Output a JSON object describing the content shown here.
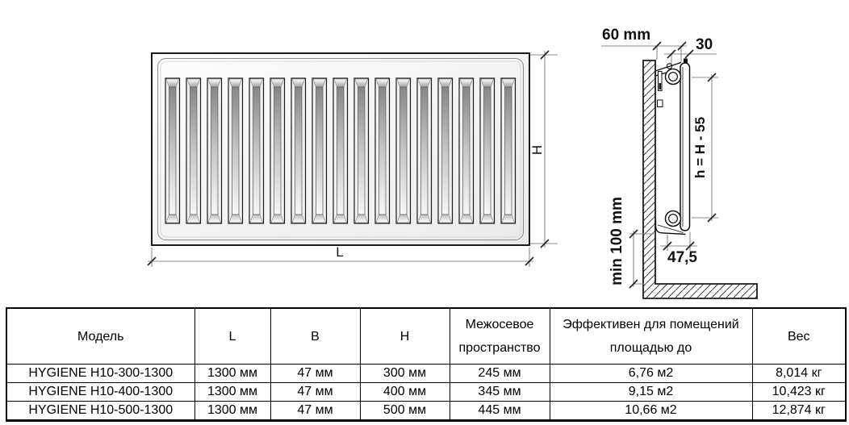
{
  "diagram": {
    "front_view": {
      "fins": 17,
      "length_label": "L",
      "height_label": "H"
    },
    "side_view": {
      "wall_distance_label": "60 mm",
      "bracket_offset_label": "30",
      "axle_height_label": "h = H - 55",
      "floor_clearance_label": "min 100 mm",
      "depth_label": "47,5"
    },
    "colors": {
      "line": "#1a1a1a",
      "dimension_line": "#8c8c8c",
      "hatch": "#444444"
    }
  },
  "table": {
    "headers": [
      "Модель",
      "L",
      "B",
      "H",
      "Межосевое пространство",
      "Эффективен для помещений площадью до",
      "Вес"
    ],
    "rows": [
      [
        "HYGIENE H10-300-1300",
        "1300 мм",
        "47 мм",
        "300 мм",
        "245 мм",
        "6,76 м2",
        "8,014 кг"
      ],
      [
        "HYGIENE H10-400-1300",
        "1300 мм",
        "47 мм",
        "400 мм",
        "345 мм",
        "9,15 м2",
        "10,423 кг"
      ],
      [
        "HYGIENE H10-500-1300",
        "1300 мм",
        "47 мм",
        "500 мм",
        "445 мм",
        "10,66 м2",
        "12,874 кг"
      ]
    ]
  }
}
